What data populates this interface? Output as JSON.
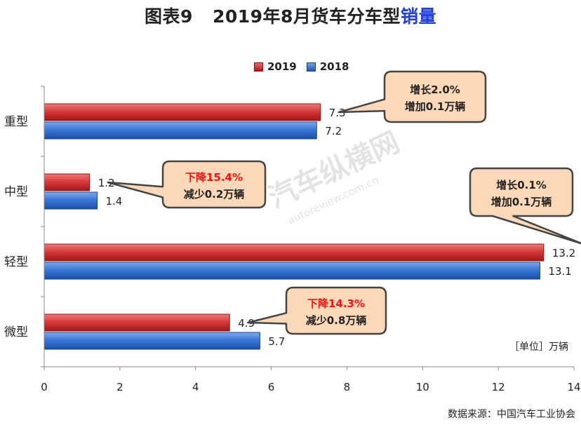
{
  "title": {
    "prefix": "图表9",
    "main": "2019年8月货车分车型",
    "highlight": "销量"
  },
  "legend": [
    {
      "name": "2019",
      "color": "#c62828"
    },
    {
      "name": "2018",
      "color": "#2e6fd0"
    }
  ],
  "unit_note": "［单位］万辆",
  "source": "数据来源：中国汽车工业协会",
  "watermark": {
    "cn": "汽车纵横网",
    "en": "autoreview.com.cn"
  },
  "chart_data": {
    "type": "bar",
    "orientation": "horizontal",
    "categories": [
      "重型",
      "中型",
      "轻型",
      "微型"
    ],
    "series": [
      {
        "name": "2019",
        "values": [
          7.3,
          1.2,
          13.2,
          4.9
        ],
        "color": "#c62828"
      },
      {
        "name": "2018",
        "values": [
          7.2,
          1.4,
          13.1,
          5.7
        ],
        "color": "#2e6fd0"
      }
    ],
    "xlim": [
      0,
      14
    ],
    "xticks": [
      0,
      2,
      4,
      6,
      8,
      10,
      12,
      14
    ],
    "grid": false,
    "legend_position": "top"
  },
  "callouts": [
    {
      "category": "重型",
      "line1": "增长2.0%",
      "line2": "增加0.1万辆",
      "line1_color": "#222222"
    },
    {
      "category": "中型",
      "line1": "下降15.4%",
      "line2": "减少0.2万辆",
      "line1_color": "#ff1010"
    },
    {
      "category": "轻型",
      "line1": "增长0.1%",
      "line2": "增加0.1万辆",
      "line1_color": "#222222"
    },
    {
      "category": "微型",
      "line1": "下降14.3%",
      "line2": "减少0.8万辆",
      "line1_color": "#ff1010"
    }
  ]
}
